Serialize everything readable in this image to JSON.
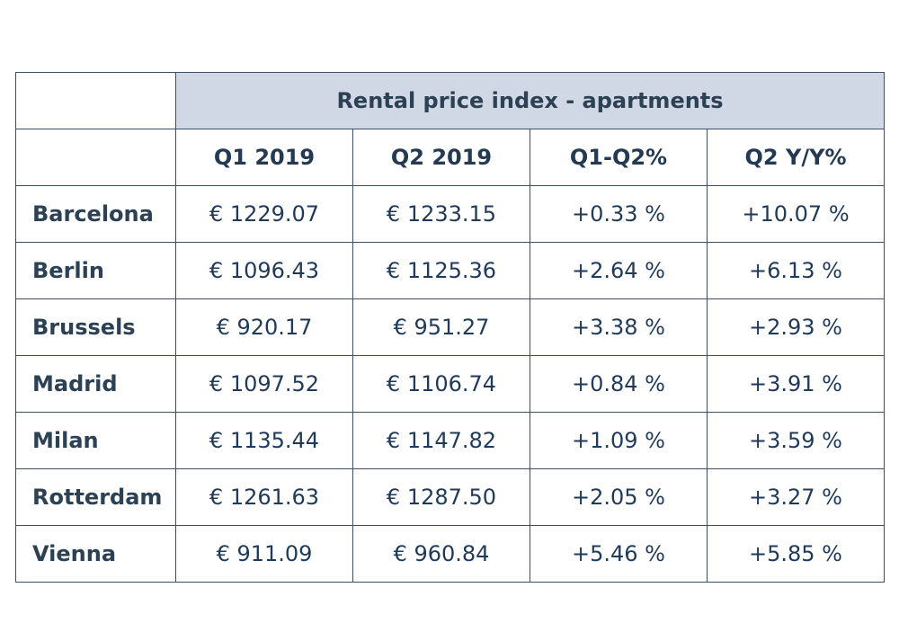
{
  "chart_data": {
    "type": "table",
    "title": "Rental price index - apartments",
    "columns": [
      "Q1 2019",
      "Q2 2019",
      "Q1-Q2%",
      "Q2 Y/Y%"
    ],
    "rows": [
      {
        "city": "Barcelona",
        "cells": [
          "€ 1229.07",
          "€ 1233.15",
          "+0.33 %",
          "+10.07 %"
        ]
      },
      {
        "city": "Berlin",
        "cells": [
          "€ 1096.43",
          "€ 1125.36",
          "+2.64 %",
          "+6.13 %"
        ]
      },
      {
        "city": "Brussels",
        "cells": [
          "€ 920.17",
          "€ 951.27",
          "+3.38 %",
          "+2.93 %"
        ]
      },
      {
        "city": "Madrid",
        "cells": [
          "€ 1097.52",
          "€ 1106.74",
          "+0.84 %",
          "+3.91 %"
        ]
      },
      {
        "city": "Milan",
        "cells": [
          "€ 1135.44",
          "€ 1147.82",
          "+1.09 %",
          "+3.59 %"
        ]
      },
      {
        "city": "Rotterdam",
        "cells": [
          "€ 1261.63",
          "€ 1287.50",
          "+2.05 %",
          "+3.27 %"
        ]
      },
      {
        "city": "Vienna",
        "cells": [
          "€ 911.09",
          "€ 960.84",
          "+5.46 %",
          "+5.85 %"
        ]
      }
    ],
    "colors": {
      "title_background": "#d0d7e5",
      "border": "#3b4f66",
      "text": "#243a52"
    }
  }
}
